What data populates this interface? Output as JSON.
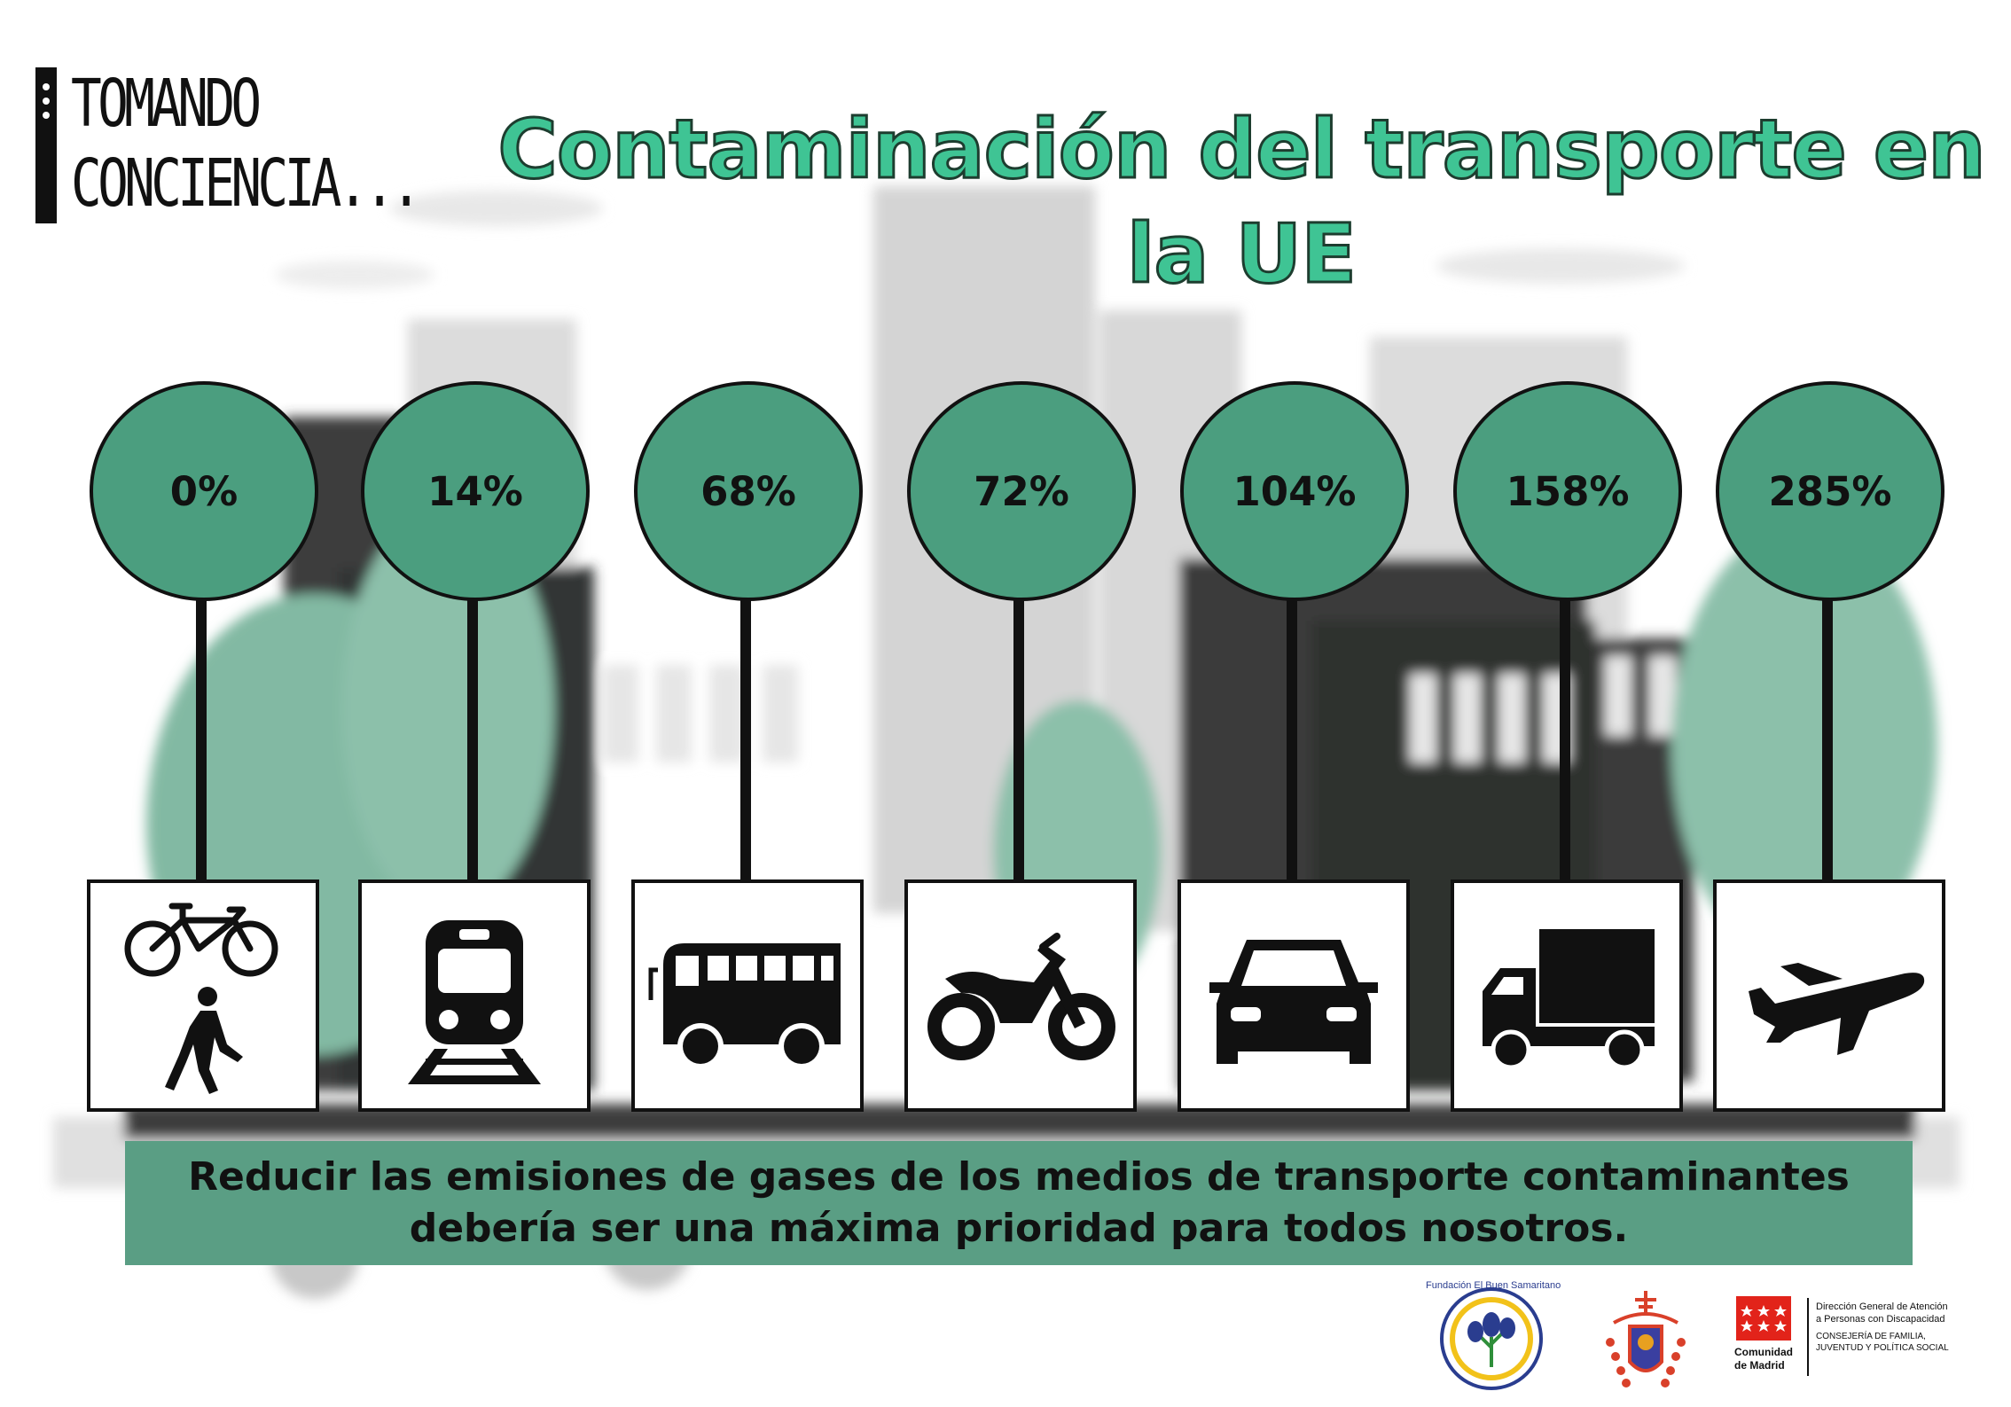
{
  "brand": {
    "line1": "TOMANDO",
    "line2": "CONCIENCIA..."
  },
  "title": {
    "line1": "Contaminación del transporte en",
    "line2": "la UE"
  },
  "transport": [
    {
      "value": "0%",
      "icon": "bicycle-pedestrian-icon"
    },
    {
      "value": "14%",
      "icon": "train-icon"
    },
    {
      "value": "68%",
      "icon": "bus-icon"
    },
    {
      "value": "72%",
      "icon": "motorcycle-icon"
    },
    {
      "value": "104%",
      "icon": "car-icon"
    },
    {
      "value": "158%",
      "icon": "truck-icon"
    },
    {
      "value": "285%",
      "icon": "airplane-icon"
    }
  ],
  "banner": {
    "line1": "Reducir las emisiones de gases de los medios de transporte contaminantes",
    "line2": "debería ser una máxima prioridad para todos nosotros."
  },
  "logos": {
    "foundation": "Fundación El Buen Samaritano",
    "madrid": {
      "name_line1": "Comunidad",
      "name_line2": "de Madrid",
      "dept_line1": "Dirección General de Atención",
      "dept_line2": "a Personas con Discapacidad",
      "dept_line3": "CONSEJERÍA DE FAMILIA,",
      "dept_line4": "JUVENTUD Y POLÍTICA SOCIAL"
    }
  },
  "colors": {
    "accent": "#4b9e7f",
    "title": "#3fc494",
    "banner": "#5a9e84"
  }
}
